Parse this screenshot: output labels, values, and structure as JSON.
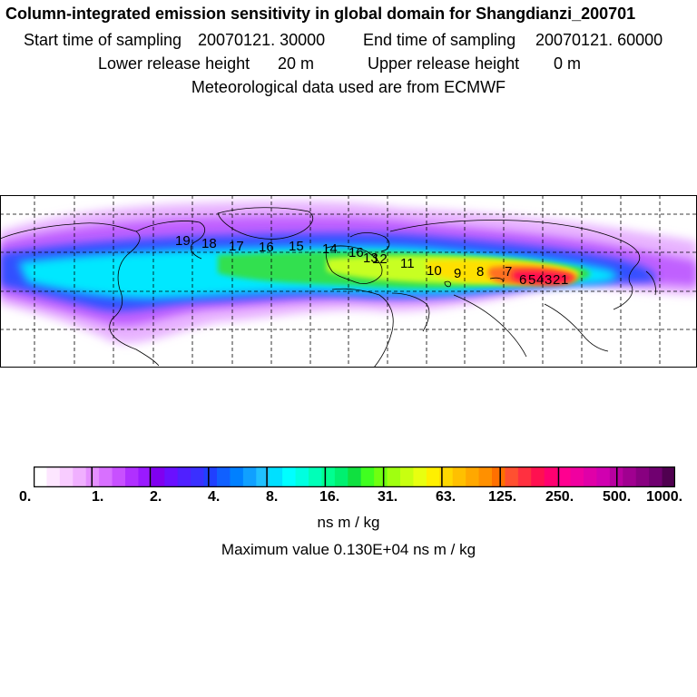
{
  "header": {
    "title": "Column-integrated emission sensitivity in global domain for Shangdianzi_200701",
    "start_label": "Start time of sampling",
    "start_value": "20070121. 30000",
    "end_label": "End time of sampling",
    "end_value": "20070121. 60000",
    "lower_label": "Lower release height",
    "lower_value": "20 m",
    "upper_label": "Upper release height",
    "upper_value": "0 m",
    "met_line": "Meteorological data used are from ECMWF"
  },
  "map": {
    "day_labels": [
      "1",
      "2",
      "3",
      "4",
      "5",
      "6",
      "7",
      "8",
      "9",
      "10",
      "11",
      "12",
      "13",
      "14",
      "15",
      "16",
      "17",
      "18",
      "19"
    ]
  },
  "colorbar": {
    "colors": [
      "#ffffff",
      "#fde6ff",
      "#f8ccff",
      "#f0b0ff",
      "#e590ff",
      "#d870ff",
      "#c850ff",
      "#b030ff",
      "#9a1aff",
      "#8000f0",
      "#6a10ff",
      "#5020ff",
      "#3a30ff",
      "#2040ff",
      "#1060ff",
      "#0080ff",
      "#10a0ff",
      "#20c0ff",
      "#00e0ff",
      "#00ffff",
      "#00ffe0",
      "#00ffb8",
      "#00ff90",
      "#00f070",
      "#10e040",
      "#40ff20",
      "#70ff10",
      "#a0ff10",
      "#c8ff10",
      "#e8ff10",
      "#fff000",
      "#ffd800",
      "#ffc000",
      "#ffa800",
      "#ff9000",
      "#ff7000",
      "#ff5030",
      "#ff3040",
      "#ff1050",
      "#ff0070",
      "#ff0090",
      "#f000a0",
      "#e000a8",
      "#d000b0",
      "#b800a0",
      "#a00090",
      "#880080",
      "#700070",
      "#500050"
    ],
    "ticks": [
      "0.",
      "1.",
      "2.",
      "4.",
      "8.",
      "16.",
      "31.",
      "63.",
      "125.",
      "250.",
      "500.",
      "1000."
    ],
    "unit": "ns m / kg"
  },
  "max_value": "Maximum value  0.130E+04 ns m / kg"
}
